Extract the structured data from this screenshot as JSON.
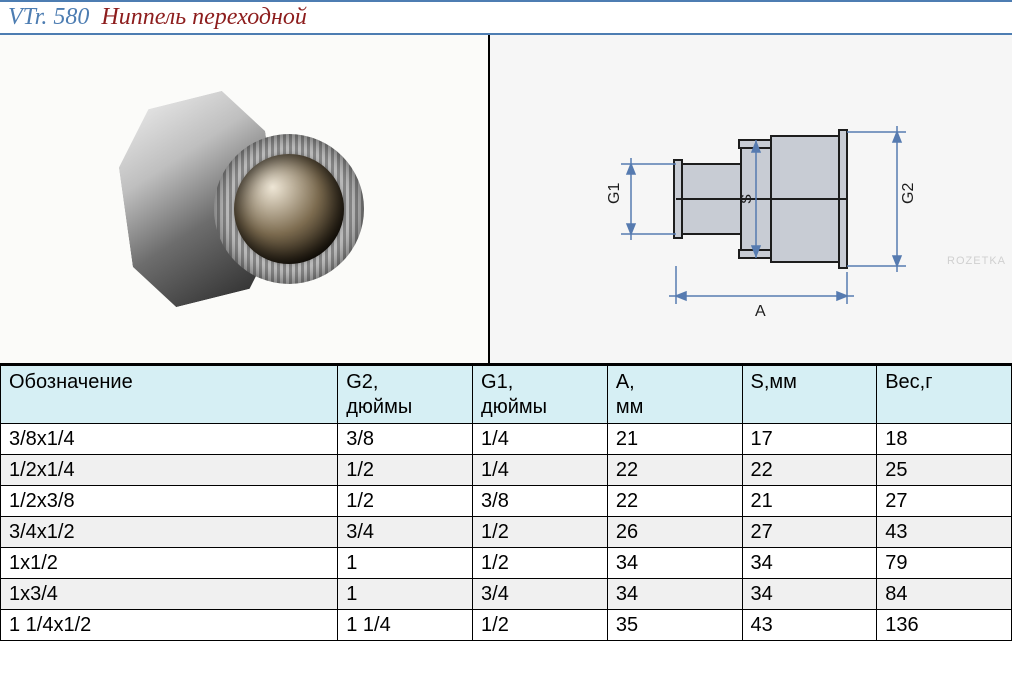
{
  "title": {
    "code": "VTr. 580",
    "name": "Ниппель переходной"
  },
  "watermark": "ROZETKA",
  "diagram_labels": {
    "g1": "G1",
    "g2": "G2",
    "s": "S",
    "a": "A"
  },
  "table": {
    "columns": [
      {
        "l1": "Обозначение",
        "l2": ""
      },
      {
        "l1": "G2,",
        "l2": "дюймы"
      },
      {
        "l1": "G1,",
        "l2": "дюймы"
      },
      {
        "l1": "A,",
        "l2": "мм"
      },
      {
        "l1": "S,мм",
        "l2": ""
      },
      {
        "l1": "Вес,г",
        "l2": ""
      }
    ],
    "rows": [
      {
        "alt": false,
        "c": [
          "3/8x1/4",
          "3/8",
          "1/4",
          "21",
          "17",
          "18"
        ]
      },
      {
        "alt": true,
        "c": [
          "1/2x1/4",
          "1/2",
          "1/4",
          "22",
          "22",
          "25"
        ]
      },
      {
        "alt": false,
        "c": [
          "1/2x3/8",
          "1/2",
          "3/8",
          "22",
          "21",
          "27"
        ]
      },
      {
        "alt": true,
        "c": [
          "3/4x1/2",
          "3/4",
          "1/2",
          "26",
          "27",
          "43"
        ]
      },
      {
        "alt": false,
        "c": [
          "1x1/2",
          "1",
          "1/2",
          "34",
          "34",
          "79"
        ]
      },
      {
        "alt": true,
        "c": [
          "1x3/4",
          "1",
          "3/4",
          "34",
          "34",
          "84"
        ]
      },
      {
        "alt": false,
        "c": [
          "1 1/4x1/2",
          "1 1/4",
          "1/2",
          "35",
          "43",
          "136"
        ]
      }
    ]
  },
  "style": {
    "accent_blue": "#4d7db2",
    "accent_red": "#8d1d1d",
    "header_bg": "#d6eff4",
    "alt_row_bg": "#f0f0f0",
    "diagram_fill": "#c8ccd4",
    "dim_line": "#567bb0"
  }
}
